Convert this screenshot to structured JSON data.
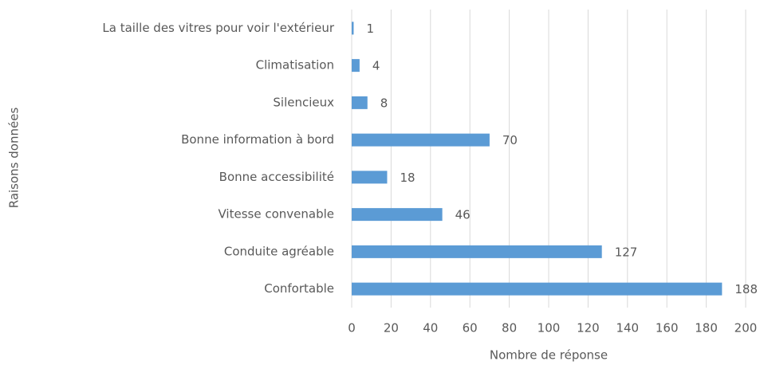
{
  "chart_data": {
    "type": "bar",
    "orientation": "horizontal",
    "y_label": "Raisons données",
    "x_label": "Nombre de réponse",
    "categories": [
      "La taille des vitres pour voir l'extérieur",
      "Climatisation",
      "Silencieux",
      "Bonne information à bord",
      "Bonne accessibilité",
      "Vitesse convenable",
      "Conduite agréable",
      "Confortable"
    ],
    "values": [
      1,
      4,
      8,
      70,
      18,
      46,
      127,
      188
    ],
    "color": "#5b9bd5",
    "xlim": [
      0,
      200
    ],
    "xticks": [
      0,
      20,
      40,
      60,
      80,
      100,
      120,
      140,
      160,
      180,
      200
    ],
    "grid": true
  }
}
